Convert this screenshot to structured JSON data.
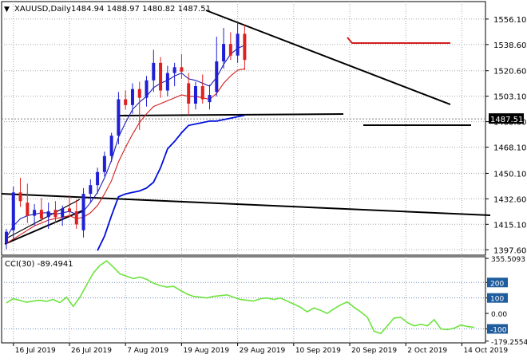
{
  "chart_data": {
    "type": "candlestick",
    "header": {
      "symbol_label": "XAUUSD,Daily",
      "ohlc_text": "1484.94 1488.97 1480.82 1487.51",
      "arrow_glyph": "▼"
    },
    "price_axis": {
      "ticks": [
        1556.1,
        1538.6,
        1520.6,
        1503.1,
        1485.6,
        1468.1,
        1450.1,
        1432.6,
        1415.1,
        1397.6
      ],
      "tick_labels": [
        "1556.10",
        "1538.60",
        "1520.60",
        "1503.10",
        "1485.60",
        "1468.10",
        "1450.10",
        "1432.60",
        "1415.10",
        "1397.60"
      ],
      "ylim": [
        1395.0,
        1567.0
      ]
    },
    "current_price": {
      "value": 1487.51,
      "label": "1487.51"
    },
    "x_axis": {
      "index_range": [
        0,
        67
      ],
      "labels": [
        {
          "text": "16 Jul 2019",
          "index": 1
        },
        {
          "text": "26 Jul 2019",
          "index": 9
        },
        {
          "text": "7 Aug 2019",
          "index": 17
        },
        {
          "text": "19 Aug 2019",
          "index": 25
        },
        {
          "text": "29 Aug 2019",
          "index": 33
        },
        {
          "text": "10 Sep 2019",
          "index": 41
        },
        {
          "text": "20 Sep 2019",
          "index": 49
        },
        {
          "text": "2 Oct 2019",
          "index": 57
        },
        {
          "text": "14 Oct 2019",
          "index": 65
        }
      ]
    },
    "candles": [
      {
        "o": 1402,
        "h": 1412,
        "l": 1398,
        "c": 1410
      },
      {
        "o": 1411,
        "h": 1441,
        "l": 1405,
        "c": 1437
      },
      {
        "o": 1437,
        "h": 1447,
        "l": 1427,
        "c": 1431
      },
      {
        "o": 1430,
        "h": 1443,
        "l": 1416,
        "c": 1421
      },
      {
        "o": 1421,
        "h": 1429,
        "l": 1414,
        "c": 1425
      },
      {
        "o": 1425,
        "h": 1433,
        "l": 1417,
        "c": 1419
      },
      {
        "o": 1420,
        "h": 1430,
        "l": 1412,
        "c": 1424
      },
      {
        "o": 1425,
        "h": 1431,
        "l": 1416,
        "c": 1420
      },
      {
        "o": 1420,
        "h": 1428,
        "l": 1414,
        "c": 1426
      },
      {
        "o": 1426,
        "h": 1435,
        "l": 1420,
        "c": 1424
      },
      {
        "o": 1424,
        "h": 1432,
        "l": 1412,
        "c": 1415
      },
      {
        "o": 1411,
        "h": 1440,
        "l": 1406,
        "c": 1436
      },
      {
        "o": 1436,
        "h": 1446,
        "l": 1430,
        "c": 1442
      },
      {
        "o": 1442,
        "h": 1454,
        "l": 1436,
        "c": 1451
      },
      {
        "o": 1451,
        "h": 1465,
        "l": 1448,
        "c": 1462
      },
      {
        "o": 1462,
        "h": 1478,
        "l": 1458,
        "c": 1476
      },
      {
        "o": 1476,
        "h": 1506,
        "l": 1470,
        "c": 1501
      },
      {
        "o": 1501,
        "h": 1507,
        "l": 1494,
        "c": 1497
      },
      {
        "o": 1497,
        "h": 1512,
        "l": 1491,
        "c": 1508
      },
      {
        "o": 1508,
        "h": 1513,
        "l": 1480,
        "c": 1502
      },
      {
        "o": 1502,
        "h": 1517,
        "l": 1496,
        "c": 1514
      },
      {
        "o": 1514,
        "h": 1535,
        "l": 1506,
        "c": 1526
      },
      {
        "o": 1526,
        "h": 1530,
        "l": 1502,
        "c": 1507
      },
      {
        "o": 1507,
        "h": 1524,
        "l": 1503,
        "c": 1519
      },
      {
        "o": 1519,
        "h": 1526,
        "l": 1510,
        "c": 1523
      },
      {
        "o": 1523,
        "h": 1532,
        "l": 1515,
        "c": 1520
      },
      {
        "o": 1512,
        "h": 1519,
        "l": 1490,
        "c": 1498
      },
      {
        "o": 1498,
        "h": 1513,
        "l": 1494,
        "c": 1510
      },
      {
        "o": 1510,
        "h": 1518,
        "l": 1498,
        "c": 1501
      },
      {
        "o": 1499,
        "h": 1511,
        "l": 1494,
        "c": 1504
      },
      {
        "o": 1506,
        "h": 1544,
        "l": 1503,
        "c": 1527
      },
      {
        "o": 1527,
        "h": 1550,
        "l": 1522,
        "c": 1539
      },
      {
        "o": 1539,
        "h": 1547,
        "l": 1528,
        "c": 1531
      },
      {
        "o": 1531,
        "h": 1554,
        "l": 1526,
        "c": 1546
      },
      {
        "o": 1546,
        "h": 1552,
        "l": 1521,
        "c": 1528
      }
    ],
    "series": [
      {
        "type": "line",
        "color": "#1f1fb5",
        "values": [
          1406,
          1414,
          1419,
          1421,
          1422,
          1423,
          1423,
          1422,
          1423,
          1424,
          1422,
          1424,
          1430,
          1437,
          1447,
          1459,
          1475,
          1485,
          1494,
          1499,
          1503,
          1509,
          1512,
          1514,
          1517,
          1519,
          1515,
          1514,
          1512,
          1510,
          1516,
          1525,
          1532,
          1536,
          1538
        ]
      },
      {
        "type": "line",
        "color": "#d41d1d",
        "values": [
          1402,
          1405,
          1408,
          1411,
          1414,
          1416,
          1418,
          1419,
          1420,
          1421,
          1419,
          1420,
          1423,
          1428,
          1436,
          1445,
          1458,
          1468,
          1477,
          1485,
          1491,
          1496,
          1498,
          1500,
          1502,
          1504,
          1503,
          1503,
          1502,
          1501,
          1505,
          1512,
          1517,
          1521,
          1522
        ]
      },
      {
        "type": "line",
        "color": "#0010d9",
        "values": [
          null,
          null,
          null,
          null,
          null,
          null,
          null,
          null,
          null,
          null,
          null,
          null,
          null,
          1397,
          1407,
          1421,
          1434,
          1436,
          1437,
          1438,
          1440,
          1444,
          1454,
          1467,
          1472,
          1478,
          1483,
          1484,
          1485,
          1486,
          1486,
          1487,
          1488,
          1489,
          1490
        ]
      }
    ],
    "cci": {
      "label": "CCI(30) -89.4941",
      "ylim": [
        -180,
        356
      ],
      "ticks": [
        355.5093,
        200,
        100,
        0,
        -100,
        -179.2554
      ],
      "tick_labels": [
        "355.5093",
        "200",
        "100",
        "0.00",
        "-100",
        "-179.2554"
      ],
      "levels": [
        200,
        100,
        -100
      ],
      "line_color": "#6de33d",
      "values": [
        68,
        95,
        85,
        72,
        80,
        85,
        78,
        90,
        70,
        105,
        45,
        105,
        185,
        260,
        310,
        340,
        300,
        255,
        240,
        225,
        235,
        220,
        195,
        180,
        170,
        175,
        150,
        125,
        110,
        105,
        100,
        110,
        115,
        120,
        105,
        90,
        85,
        80,
        95,
        100,
        90,
        100,
        80,
        60,
        40,
        10,
        35,
        20,
        0,
        30,
        55,
        75,
        40,
        10,
        -25,
        -115,
        -130,
        -80,
        -30,
        -25,
        -60,
        -80,
        -70,
        -80,
        -40,
        -100,
        -105,
        -95,
        -75,
        -85,
        -90
      ]
    }
  }
}
